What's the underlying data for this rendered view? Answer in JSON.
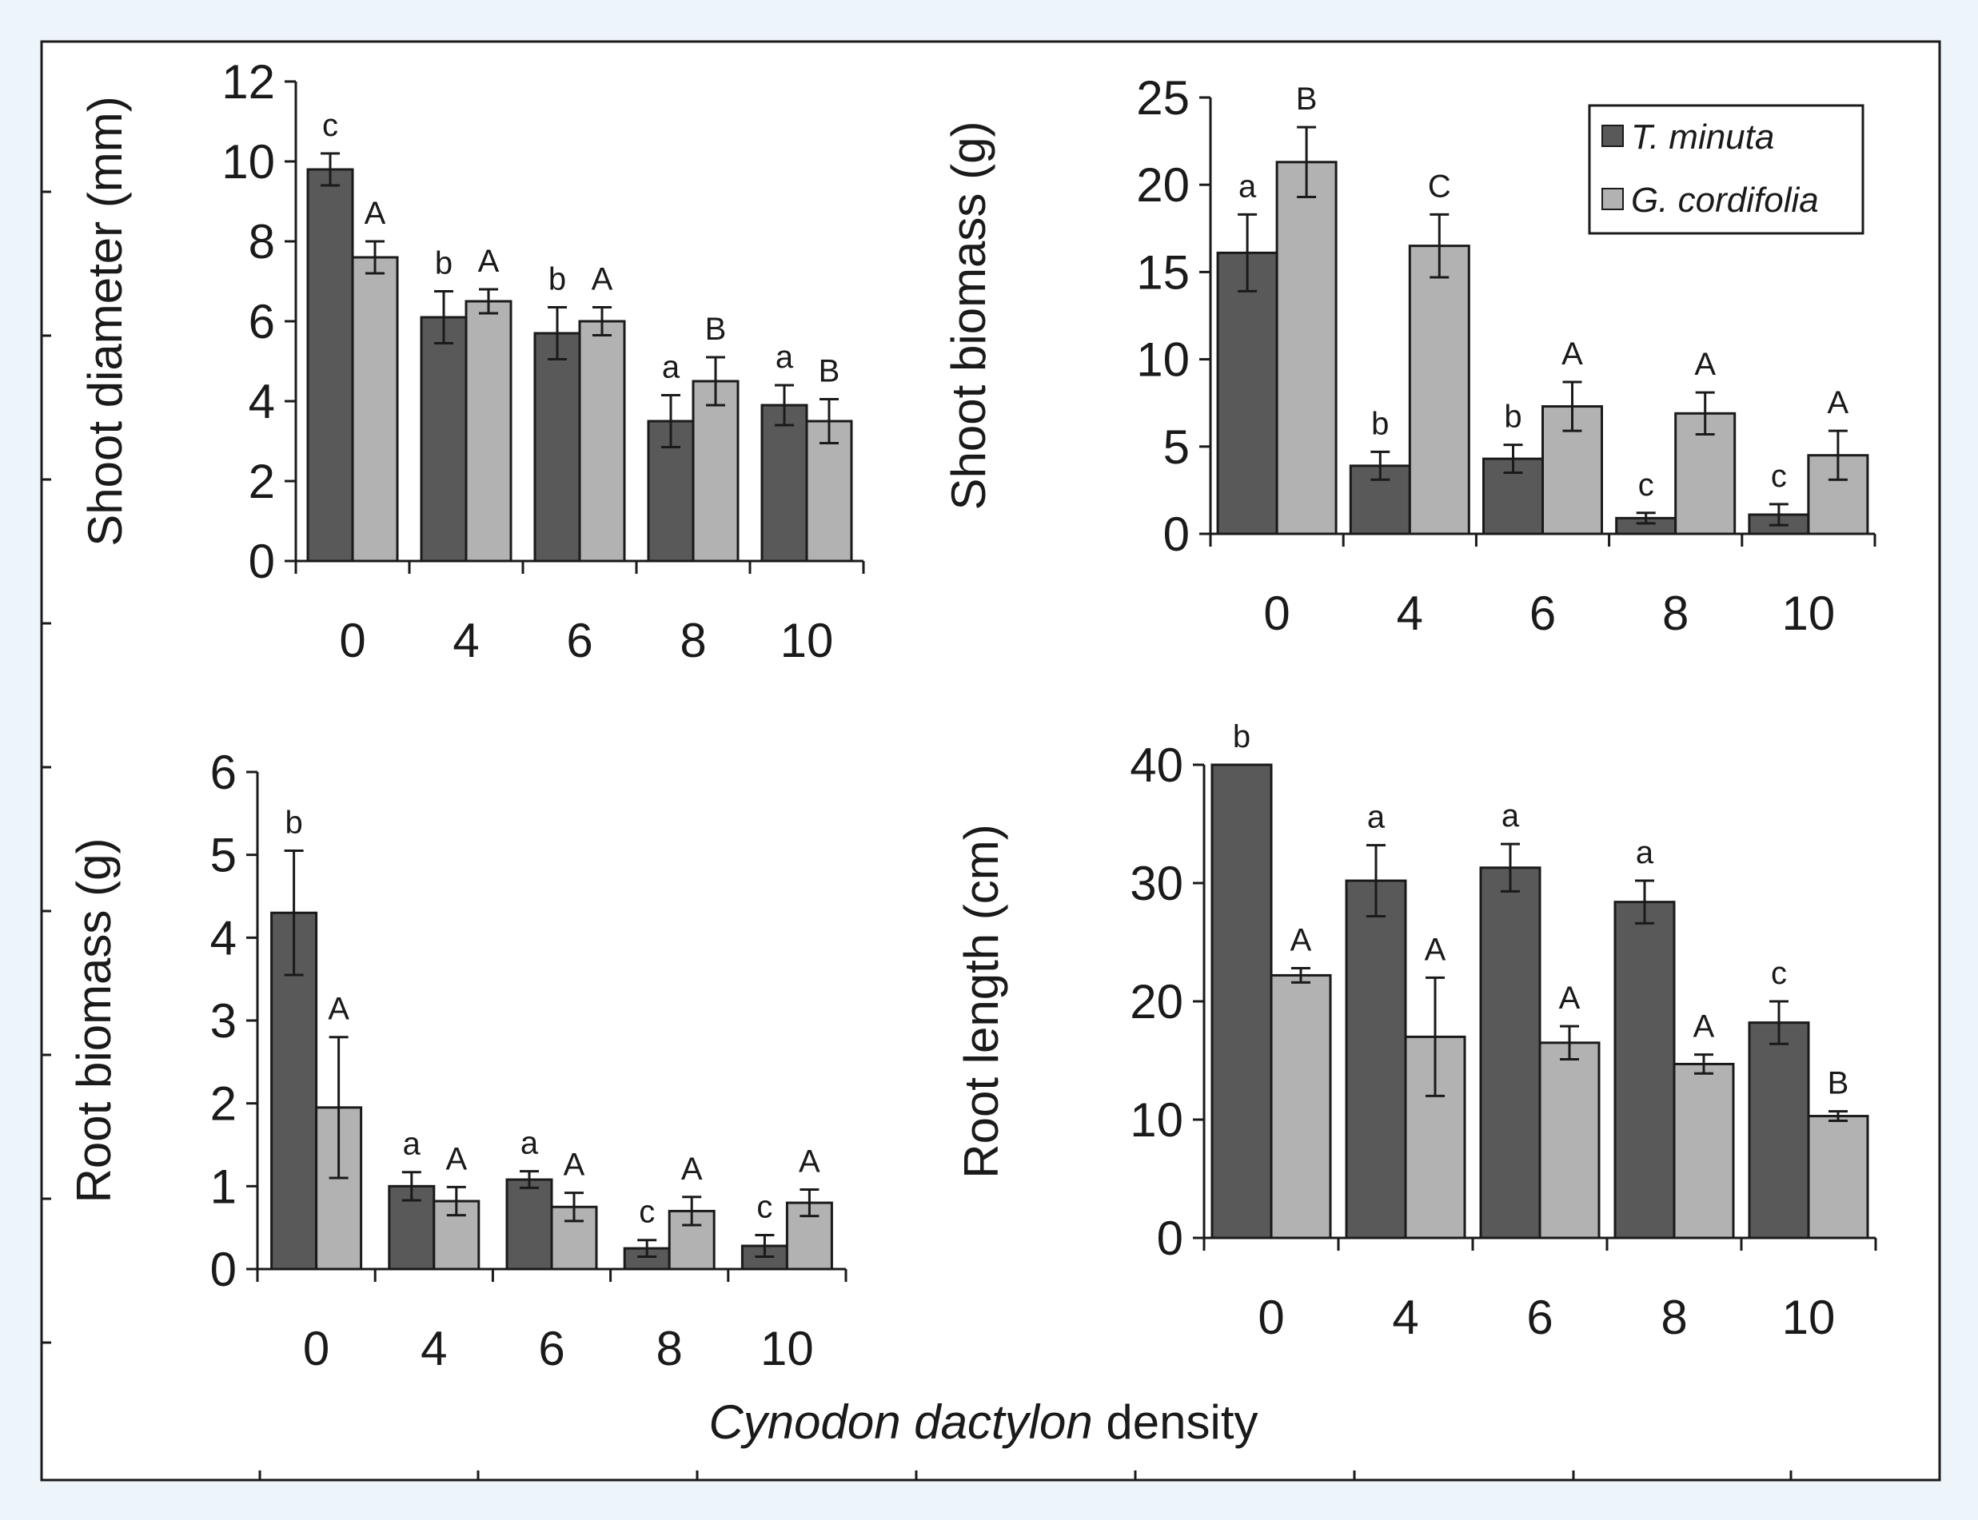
{
  "figure": {
    "x_axis_title_italic": "Cynodon dactylon",
    "x_axis_title_rest": " density"
  },
  "colors": {
    "background": "#edf4fa",
    "panel": "#ffffff",
    "frame": "#1a1a1a",
    "series_dark": "#595959",
    "series_light": "#b2b2b2"
  },
  "legend": {
    "items": [
      {
        "label": "T. minuta",
        "color": "#595959"
      },
      {
        "label": "G. cordifolia",
        "color": "#b2b2b2"
      }
    ]
  },
  "chart_data": [
    {
      "id": "shoot-diameter",
      "type": "bar",
      "ylabel": "Shoot diameter (mm)",
      "ylim": [
        0,
        12
      ],
      "yticks": [
        0,
        2,
        4,
        6,
        8,
        10,
        12
      ],
      "categories": [
        "0",
        "4",
        "6",
        "8",
        "10"
      ],
      "series": [
        {
          "name": "T. minuta",
          "values": [
            9.8,
            6.1,
            5.7,
            3.5,
            3.9
          ],
          "errors": [
            0.4,
            0.65,
            0.65,
            0.65,
            0.5
          ],
          "labels": [
            "c",
            "b",
            "b",
            "a",
            "a"
          ]
        },
        {
          "name": "G. cordifolia",
          "values": [
            7.6,
            6.5,
            6.0,
            4.5,
            3.5
          ],
          "errors": [
            0.4,
            0.3,
            0.35,
            0.6,
            0.55
          ],
          "labels": [
            "A",
            "A",
            "A",
            "B",
            "B"
          ]
        }
      ]
    },
    {
      "id": "shoot-biomass",
      "type": "bar",
      "ylabel": "Shoot biomass (g)",
      "ylim": [
        0,
        25
      ],
      "yticks": [
        0,
        5,
        10,
        15,
        20,
        25
      ],
      "categories": [
        "0",
        "4",
        "6",
        "8",
        "10"
      ],
      "legend": true,
      "series": [
        {
          "name": "T. minuta",
          "values": [
            16.1,
            3.9,
            4.3,
            0.9,
            1.1
          ],
          "errors": [
            2.2,
            0.8,
            0.8,
            0.3,
            0.6
          ],
          "labels": [
            "a",
            "b",
            "b",
            "c",
            "c"
          ]
        },
        {
          "name": "G. cordifolia",
          "values": [
            21.3,
            16.5,
            7.3,
            6.9,
            4.5
          ],
          "errors": [
            2.0,
            1.8,
            1.4,
            1.2,
            1.4
          ],
          "labels": [
            "B",
            "C",
            "A",
            "A",
            "A"
          ]
        }
      ]
    },
    {
      "id": "root-biomass",
      "type": "bar",
      "ylabel": "Root biomass (g)",
      "ylim": [
        0,
        6
      ],
      "yticks": [
        0,
        1,
        2,
        3,
        4,
        5,
        6
      ],
      "categories": [
        "0",
        "4",
        "6",
        "8",
        "10"
      ],
      "series": [
        {
          "name": "T. minuta",
          "values": [
            4.3,
            1.0,
            1.08,
            0.25,
            0.28
          ],
          "errors": [
            0.75,
            0.17,
            0.1,
            0.1,
            0.13
          ],
          "labels": [
            "b",
            "a",
            "a",
            "c",
            "c"
          ]
        },
        {
          "name": "G. cordifolia",
          "values": [
            1.95,
            0.82,
            0.75,
            0.7,
            0.8
          ],
          "errors": [
            0.85,
            0.17,
            0.17,
            0.17,
            0.16
          ],
          "labels": [
            "A",
            "A",
            "A",
            "A",
            "A"
          ]
        }
      ]
    },
    {
      "id": "root-length",
      "type": "bar",
      "ylabel": "Root length (cm)",
      "ylim": [
        0,
        40
      ],
      "yticks": [
        0,
        10,
        20,
        30,
        40
      ],
      "categories": [
        "0",
        "4",
        "6",
        "8",
        "10"
      ],
      "series": [
        {
          "name": "T. minuta",
          "values": [
            40,
            30.2,
            31.3,
            28.4,
            18.2
          ],
          "errors": [
            0,
            3.0,
            2.0,
            1.8,
            1.8
          ],
          "labels": [
            "b",
            "a",
            "a",
            "a",
            "c"
          ]
        },
        {
          "name": "G. cordifolia",
          "values": [
            22.2,
            17.0,
            16.5,
            14.7,
            10.3
          ],
          "errors": [
            0.6,
            5.0,
            1.4,
            0.8,
            0.4
          ],
          "labels": [
            "A",
            "A",
            "A",
            "A",
            "B"
          ]
        }
      ]
    }
  ]
}
